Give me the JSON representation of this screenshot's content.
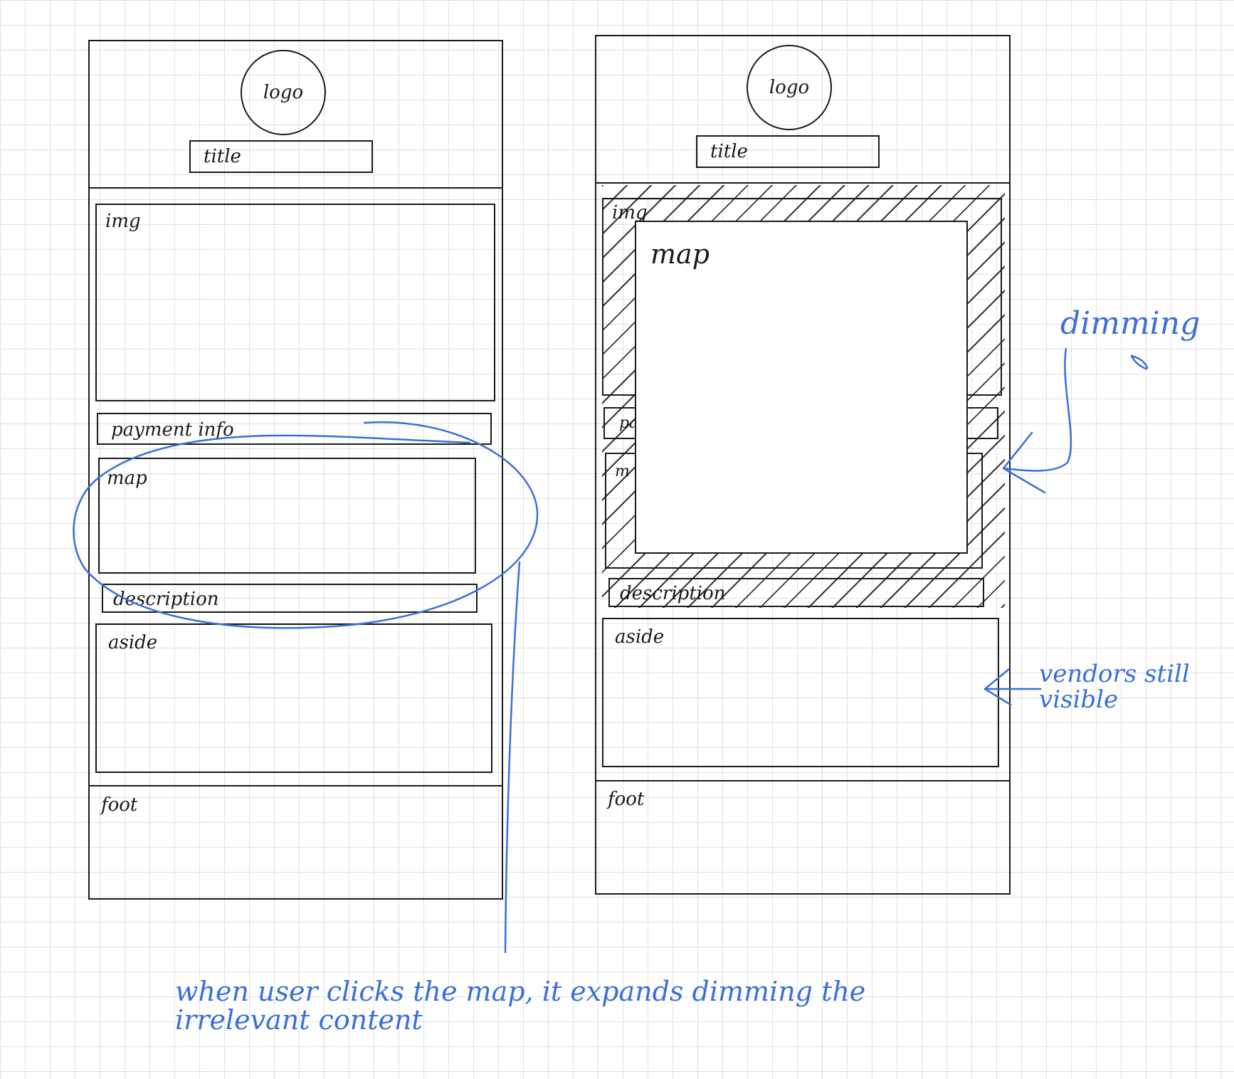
{
  "left_wireframe": {
    "logo_label": "logo",
    "title_label": "title",
    "img_label": "img",
    "payment_label": "payment info",
    "map_label": "map",
    "description_label": "description",
    "aside_label": "aside",
    "foot_label": "foot"
  },
  "right_wireframe": {
    "logo_label": "logo",
    "title_label": "title",
    "img_label": "img",
    "payment_label": "pa",
    "map_partial_label": "m",
    "map_label": "map",
    "description_label": "description",
    "aside_label": "aside",
    "foot_label": "foot"
  },
  "annotations": {
    "dimming": "dimming",
    "vendors_visible": "vendors still visible",
    "bottom_note": "when user clicks the map, it expands dimming the irrelevant content"
  },
  "colors": {
    "ink": "#1a1a1a",
    "annotation_blue": "#3a6fd8",
    "grid": "#e1e1e1"
  }
}
